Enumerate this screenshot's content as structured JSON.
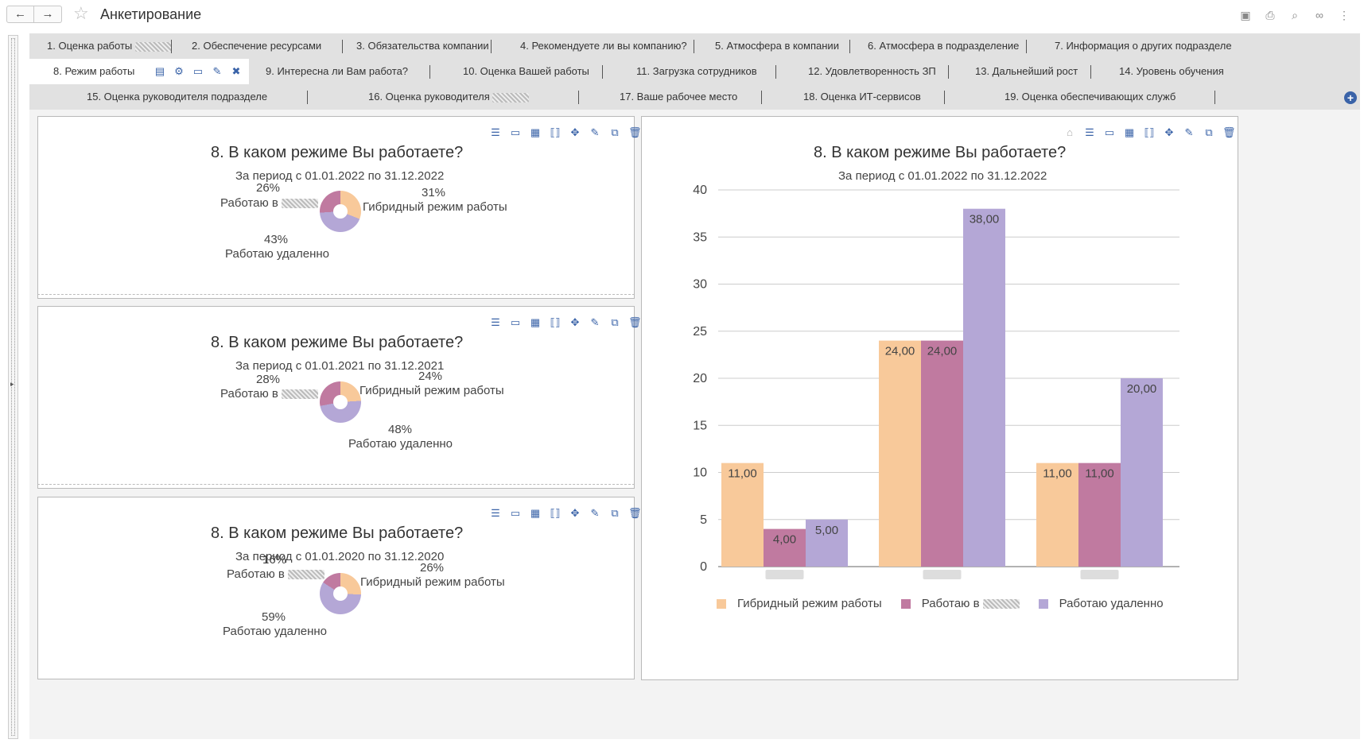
{
  "window": {
    "title": "Анкетирование",
    "back_icon": "←",
    "forward_icon": "→",
    "star_icon": "☆"
  },
  "tabs": {
    "row1": [
      "1. Оценка работы",
      "2. Обеспечение ресурсами",
      "3. Обязательства компании",
      "4. Рекомендуете ли вы компанию?",
      "5. Атмосфера в компании",
      "6. Атмосфера в подразделение",
      "7. Информация о других подразделе"
    ],
    "active": "8. Режим работы",
    "row2": [
      "9. Интересна ли Вам работа?",
      "10. Оценка Вашей работы",
      "11. Загрузка сотрудников",
      "12. Удовлетворенность ЗП",
      "13. Дальнейший рост",
      "14. Уровень обучения"
    ],
    "row3": [
      "15. Оценка руководителя подразделе",
      "16. Оценка руководителя",
      "17. Ваше рабочее место",
      "18. Оценка ИТ-сервисов",
      "19. Оценка обеспечивающих служб"
    ],
    "add_icon": "+"
  },
  "pies": [
    {
      "title": "8. В каком режиме Вы работаете?",
      "period": "За период с 01.01.2022 по 31.12.2022",
      "labels": [
        {
          "pct": "26%",
          "name": "Работаю в"
        },
        {
          "pct": "31%",
          "name": "Гибридный режим работы"
        },
        {
          "pct": "43%",
          "name": "Работаю удаленно"
        }
      ]
    },
    {
      "title": "8. В каком режиме Вы работаете?",
      "period": "За период с 01.01.2021 по 31.12.2021",
      "labels": [
        {
          "pct": "28%",
          "name": "Работаю в"
        },
        {
          "pct": "24%",
          "name": "Гибридный режим работы"
        },
        {
          "pct": "48%",
          "name": "Работаю удаленно"
        }
      ]
    },
    {
      "title": "8. В каком режиме Вы работаете?",
      "period": "За период с 01.01.2020 по 31.12.2020",
      "labels": [
        {
          "pct": "16%",
          "name": "Работаю в"
        },
        {
          "pct": "26%",
          "name": "Гибридный режим работы"
        },
        {
          "pct": "59%",
          "name": "Работаю удаленно"
        }
      ]
    }
  ],
  "colors": {
    "hybrid": "#f8c99a",
    "office": "#c07aa0",
    "remote": "#b4a7d6",
    "accent": "#3a63a8"
  },
  "chart_data": {
    "type": "bar",
    "title": "8. В каком режиме Вы работаете?",
    "subtitle": "За период с 01.01.2022 по 31.12.2022",
    "categories": [
      "",
      "",
      ""
    ],
    "series": [
      {
        "name": "Гибридный режим работы",
        "values": [
          11,
          24,
          11
        ],
        "labels": [
          "11,00",
          "24,00",
          "11,00"
        ]
      },
      {
        "name": "Работаю в",
        "values": [
          4,
          24,
          11
        ],
        "labels": [
          "4,00",
          "24,00",
          "11,00"
        ]
      },
      {
        "name": "Работаю удаленно",
        "values": [
          5,
          38,
          20
        ],
        "labels": [
          "5,00",
          "38,00",
          "20,00"
        ]
      }
    ],
    "ylim": [
      0,
      40
    ],
    "yticks": [
      0,
      5,
      10,
      15,
      20,
      25,
      30,
      35,
      40
    ],
    "grid": true,
    "legend": "bottom"
  }
}
